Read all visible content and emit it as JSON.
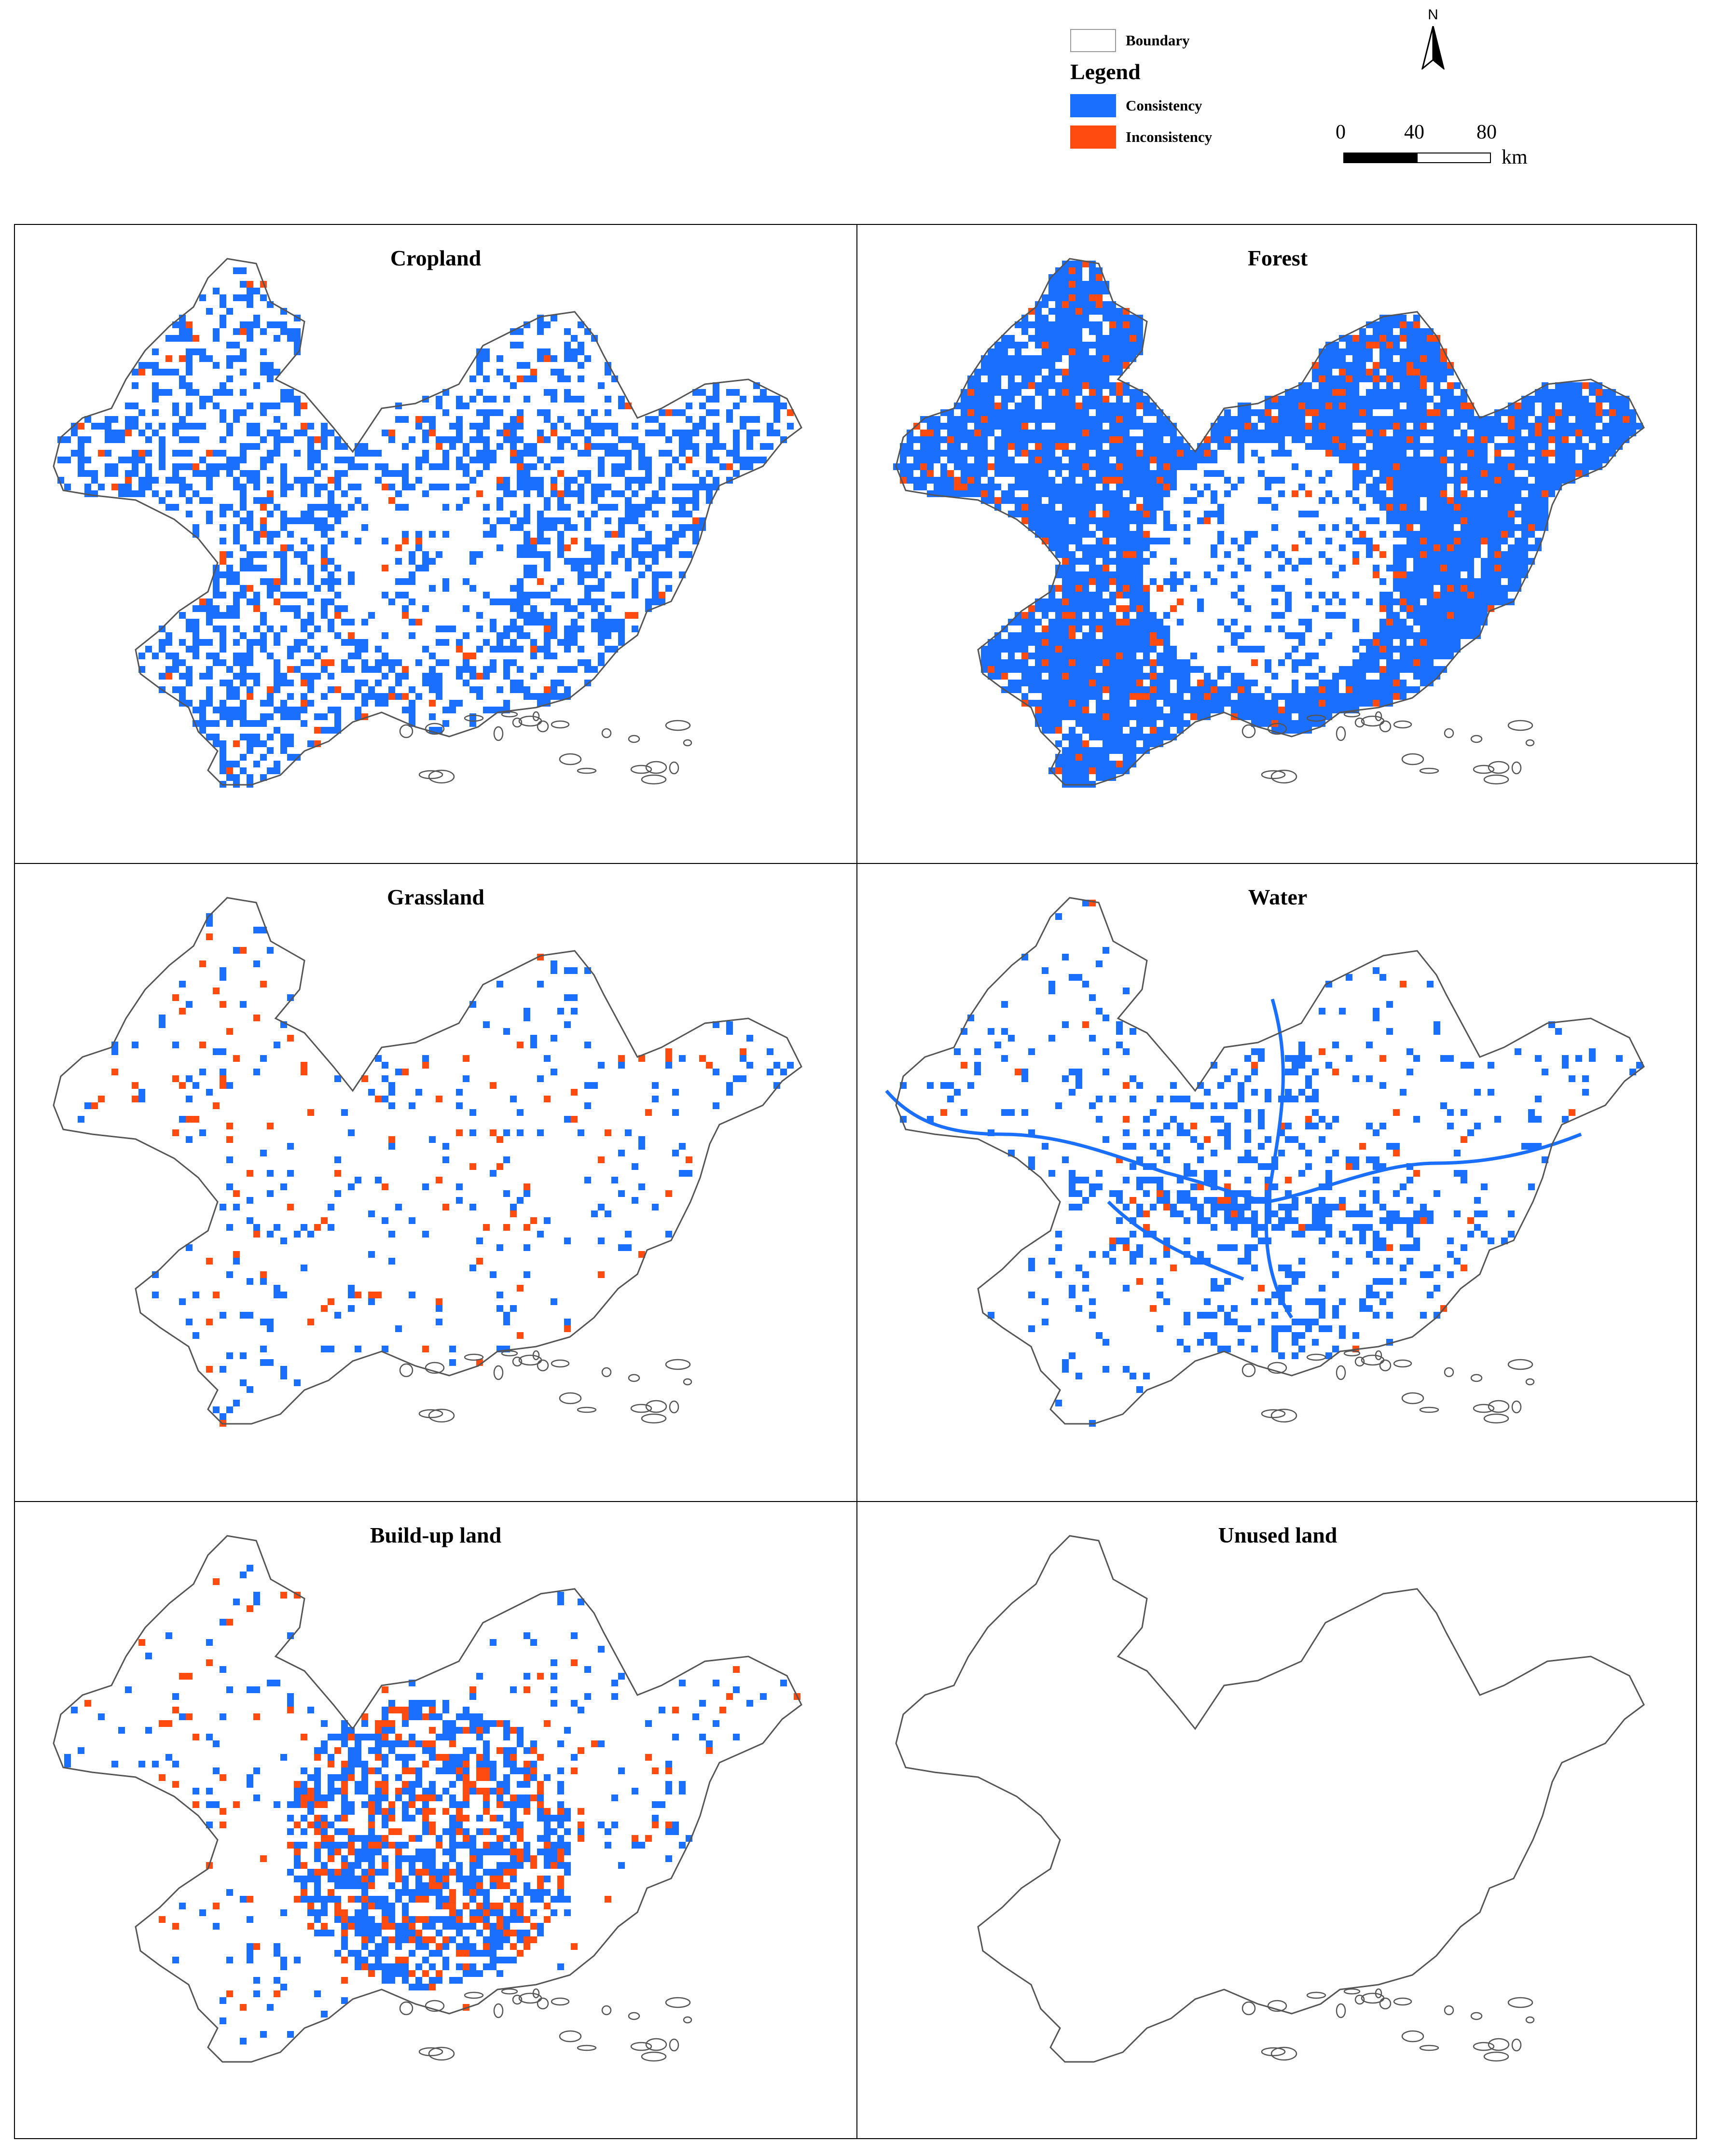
{
  "legend": {
    "boundary_label": "Boundary",
    "title": "Legend",
    "items": [
      {
        "label": "Consistency",
        "color": "#1a6fff"
      },
      {
        "label": "Inconsistency",
        "color": "#ff4a10"
      }
    ],
    "boundary_color": "#9a9a9a"
  },
  "north_arrow": {
    "letter": "N"
  },
  "scale_bar": {
    "ticks": [
      "0",
      "40",
      "80"
    ],
    "unit": "km"
  },
  "panels": [
    {
      "title": "Cropland",
      "blue_density": 0.42,
      "orange_density": 0.03,
      "pattern": "cropland"
    },
    {
      "title": "Forest",
      "blue_density": 0.8,
      "orange_density": 0.08,
      "pattern": "forest"
    },
    {
      "title": "Grassland",
      "blue_density": 0.06,
      "orange_density": 0.03,
      "pattern": "sparse"
    },
    {
      "title": "Water",
      "blue_density": 0.14,
      "orange_density": 0.01,
      "pattern": "water"
    },
    {
      "title": "Build-up land",
      "blue_density": 0.3,
      "orange_density": 0.12,
      "pattern": "urban"
    },
    {
      "title": "Unused land",
      "blue_density": 0.0,
      "orange_density": 0.0,
      "pattern": "empty"
    }
  ]
}
